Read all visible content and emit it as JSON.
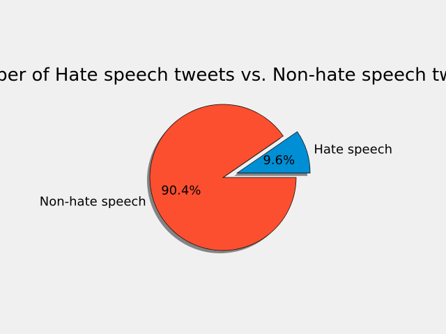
{
  "chart_data": {
    "type": "pie",
    "title": "Number of Hate speech tweets vs. Non-hate speech tweets",
    "slices": [
      {
        "label": "Hate speech",
        "value": 9.6,
        "pct_label": "9.6%",
        "color": "#008fd5",
        "exploded": true
      },
      {
        "label": "Non-hate speech",
        "value": 90.4,
        "pct_label": "90.4%",
        "color": "#fc4f30",
        "exploded": false
      }
    ],
    "shadow": true,
    "edge_color": "#000000"
  }
}
